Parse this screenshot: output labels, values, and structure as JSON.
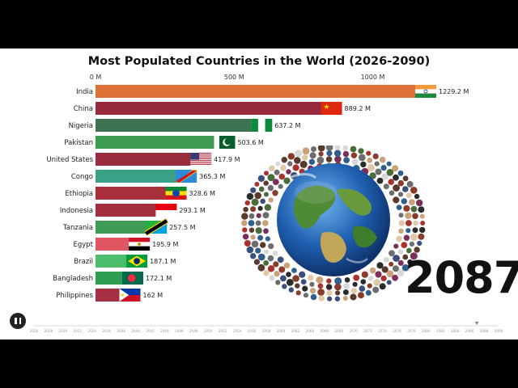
{
  "chart_data": {
    "type": "bar",
    "title": "Most Populated Countries in the World (2026-2090)",
    "current_year": "2087",
    "unit": "M",
    "xlim": [
      0,
      1250
    ],
    "x_ticks": [
      {
        "value": 0,
        "label": "0 M"
      },
      {
        "value": 500,
        "label": "500 M"
      },
      {
        "value": 1000,
        "label": "1000 M"
      }
    ],
    "bars": [
      {
        "country": "India",
        "value": 1229.2,
        "label": "1229.2 M",
        "color": "#dd7137",
        "flag": "india"
      },
      {
        "country": "China",
        "value": 889.2,
        "label": "889.2 M",
        "color": "#962a3c",
        "flag": "china"
      },
      {
        "country": "Nigeria",
        "value": 637.2,
        "label": "637.2 M",
        "color": "#3e7352",
        "flag": "nigeria"
      },
      {
        "country": "Pakistan",
        "value": 503.6,
        "label": "503.6 M",
        "color": "#3f9a52",
        "flag": "pakistan"
      },
      {
        "country": "United States",
        "value": 417.9,
        "label": "417.9 M",
        "color": "#992c3f",
        "flag": "usa"
      },
      {
        "country": "Congo",
        "value": 365.3,
        "label": "365.3 M",
        "color": "#3aa086",
        "flag": "congo"
      },
      {
        "country": "Ethiopia",
        "value": 328.6,
        "label": "328.6 M",
        "color": "#a92f3b",
        "flag": "ethiopia"
      },
      {
        "country": "Indonesia",
        "value": 293.1,
        "label": "293.1 M",
        "color": "#a52e3e",
        "flag": "indonesia"
      },
      {
        "country": "Tanzania",
        "value": 257.5,
        "label": "257.5 M",
        "color": "#3e9c56",
        "flag": "tanzania"
      },
      {
        "country": "Egypt",
        "value": 195.9,
        "label": "195.9 M",
        "color": "#e05663",
        "flag": "egypt"
      },
      {
        "country": "Brazil",
        "value": 187.1,
        "label": "187.1 M",
        "color": "#4cbe6c",
        "flag": "brazil"
      },
      {
        "country": "Bangladesh",
        "value": 172.1,
        "label": "172.1 M",
        "color": "#2f9d51",
        "flag": "bangladesh"
      },
      {
        "country": "Philippines",
        "value": 162,
        "label": "162 M",
        "color": "#a72f43",
        "flag": "philippines"
      }
    ],
    "timeline": {
      "start": 2026,
      "end": 2090,
      "step": 2,
      "current": 2087,
      "ticks": [
        "2026",
        "2028",
        "2030",
        "2032",
        "2034",
        "2036",
        "2038",
        "2040",
        "2042",
        "2044",
        "2046",
        "2048",
        "2050",
        "2052",
        "2054",
        "2056",
        "2058",
        "2060",
        "2062",
        "2064",
        "2066",
        "2068",
        "2070",
        "2072",
        "2074",
        "2076",
        "2078",
        "2080",
        "2082",
        "2084",
        "2086",
        "2088",
        "2090"
      ]
    },
    "grid": false,
    "legend": "none"
  },
  "controls": {
    "pause_icon": "pause-icon"
  }
}
